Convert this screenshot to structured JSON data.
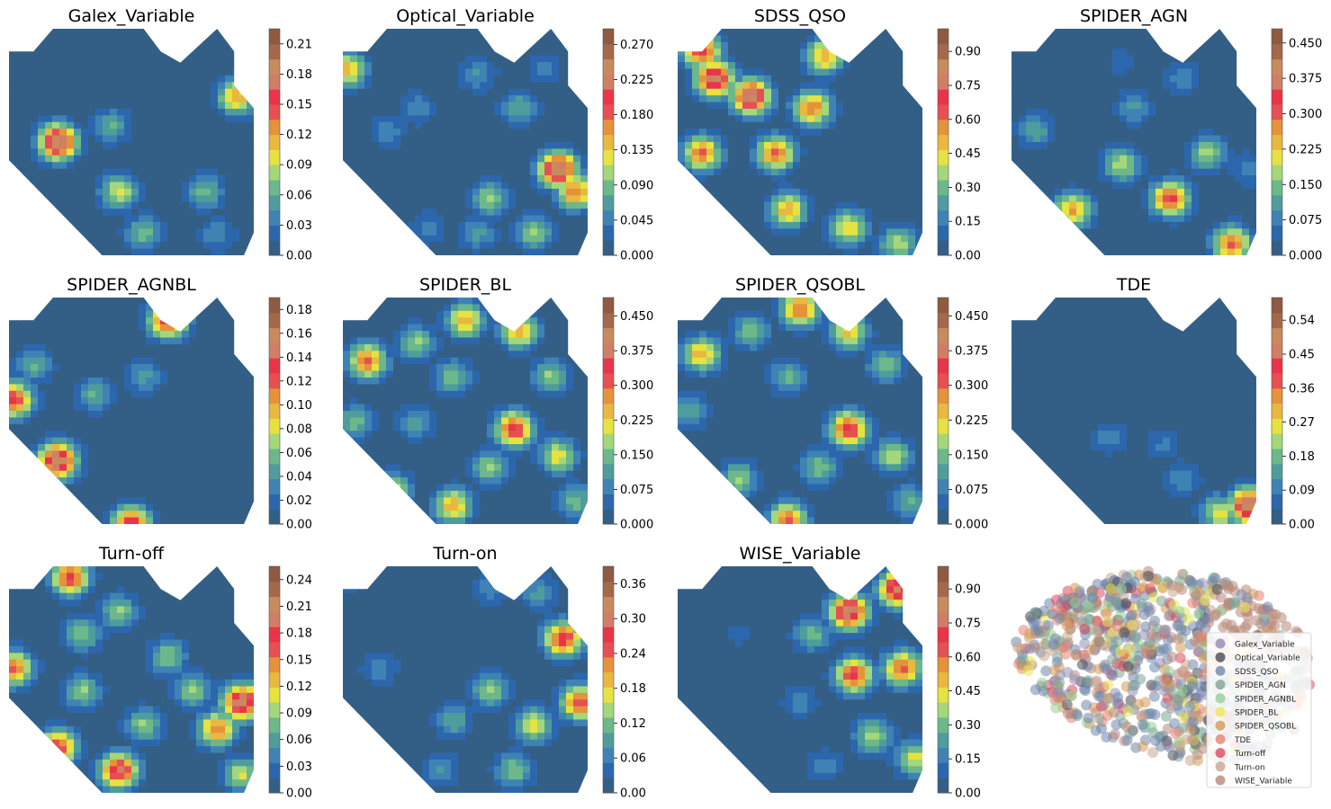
{
  "chart_data": {
    "type": "heatmap",
    "description_panels": "filled contour maps over a self-organizing grid, one per class",
    "levels": 13,
    "panels": [
      {
        "title": "Galex_Variable",
        "colorbar_ticks": [
          "0.00",
          "0.03",
          "0.06",
          "0.09",
          "0.12",
          "0.15",
          "0.18",
          "0.21"
        ],
        "vmax": 0.225,
        "hotspots": [
          [
            0.2,
            0.5,
            0.22
          ],
          [
            0.42,
            0.43,
            0.07
          ],
          [
            0.45,
            0.72,
            0.11
          ],
          [
            0.55,
            0.9,
            0.08
          ],
          [
            0.8,
            0.72,
            0.08
          ],
          [
            0.93,
            0.3,
            0.14
          ],
          [
            0.85,
            0.91,
            0.05
          ]
        ]
      },
      {
        "title": "Optical_Variable",
        "colorbar_ticks": [
          "0.000",
          "0.045",
          "0.090",
          "0.135",
          "0.180",
          "0.225",
          "0.270"
        ],
        "vmax": 0.29,
        "hotspots": [
          [
            0.02,
            0.18,
            0.17
          ],
          [
            0.18,
            0.45,
            0.06
          ],
          [
            0.3,
            0.35,
            0.06
          ],
          [
            0.55,
            0.2,
            0.07
          ],
          [
            0.72,
            0.35,
            0.09
          ],
          [
            0.82,
            0.18,
            0.05
          ],
          [
            0.88,
            0.62,
            0.29
          ],
          [
            0.95,
            0.72,
            0.2
          ],
          [
            0.6,
            0.75,
            0.12
          ],
          [
            0.55,
            0.9,
            0.08
          ],
          [
            0.78,
            0.9,
            0.12
          ],
          [
            0.35,
            0.88,
            0.06
          ]
        ]
      },
      {
        "title": "SDSS_QSO",
        "colorbar_ticks": [
          "0.00",
          "0.15",
          "0.30",
          "0.45",
          "0.60",
          "0.75",
          "0.90"
        ],
        "vmax": 1.0,
        "hotspots": [
          [
            0.15,
            0.22,
            0.95
          ],
          [
            0.3,
            0.3,
            0.98
          ],
          [
            0.1,
            0.55,
            0.7
          ],
          [
            0.4,
            0.55,
            0.72
          ],
          [
            0.55,
            0.35,
            0.7
          ],
          [
            0.45,
            0.8,
            0.62
          ],
          [
            0.7,
            0.88,
            0.55
          ],
          [
            0.9,
            0.95,
            0.45
          ],
          [
            0.1,
            0.1,
            0.8
          ],
          [
            0.6,
            0.12,
            0.62
          ]
        ]
      },
      {
        "title": "SPIDER_AGN",
        "colorbar_ticks": [
          "0.000",
          "0.075",
          "0.150",
          "0.225",
          "0.300",
          "0.375",
          "0.450"
        ],
        "vmax": 0.48,
        "hotspots": [
          [
            0.25,
            0.8,
            0.3
          ],
          [
            0.65,
            0.75,
            0.38
          ],
          [
            0.9,
            0.95,
            0.35
          ],
          [
            0.45,
            0.6,
            0.22
          ],
          [
            0.8,
            0.55,
            0.2
          ],
          [
            0.5,
            0.35,
            0.12
          ],
          [
            0.7,
            0.22,
            0.1
          ],
          [
            0.45,
            0.15,
            0.06
          ],
          [
            0.1,
            0.45,
            0.14
          ],
          [
            0.97,
            0.62,
            0.1
          ]
        ]
      },
      {
        "title": "SPIDER_AGNBL",
        "colorbar_ticks": [
          "0.00",
          "0.02",
          "0.04",
          "0.06",
          "0.08",
          "0.10",
          "0.12",
          "0.14",
          "0.16",
          "0.18"
        ],
        "vmax": 0.19,
        "hotspots": [
          [
            0.02,
            0.45,
            0.15
          ],
          [
            0.2,
            0.72,
            0.19
          ],
          [
            0.35,
            0.43,
            0.06
          ],
          [
            0.55,
            0.35,
            0.05
          ],
          [
            0.65,
            0.1,
            0.16
          ],
          [
            0.5,
            1.0,
            0.16
          ],
          [
            0.1,
            0.3,
            0.06
          ]
        ]
      },
      {
        "title": "SPIDER_BL",
        "colorbar_ticks": [
          "0.000",
          "0.075",
          "0.150",
          "0.225",
          "0.300",
          "0.375",
          "0.450"
        ],
        "vmax": 0.49,
        "hotspots": [
          [
            0.1,
            0.28,
            0.35
          ],
          [
            0.3,
            0.2,
            0.2
          ],
          [
            0.5,
            0.1,
            0.3
          ],
          [
            0.72,
            0.15,
            0.3
          ],
          [
            0.85,
            0.35,
            0.2
          ],
          [
            0.45,
            0.35,
            0.18
          ],
          [
            0.7,
            0.58,
            0.4
          ],
          [
            0.6,
            0.75,
            0.2
          ],
          [
            0.88,
            0.7,
            0.25
          ],
          [
            0.95,
            0.9,
            0.18
          ],
          [
            0.2,
            0.85,
            0.25
          ],
          [
            0.45,
            0.92,
            0.3
          ],
          [
            0.05,
            0.55,
            0.18
          ],
          [
            0.3,
            0.55,
            0.14
          ]
        ]
      },
      {
        "title": "SPIDER_QSOBL",
        "colorbar_ticks": [
          "0.000",
          "0.075",
          "0.150",
          "0.225",
          "0.300",
          "0.375",
          "0.450"
        ],
        "vmax": 0.49,
        "hotspots": [
          [
            0.1,
            0.25,
            0.3
          ],
          [
            0.3,
            0.15,
            0.18
          ],
          [
            0.5,
            0.05,
            0.35
          ],
          [
            0.7,
            0.15,
            0.28
          ],
          [
            0.85,
            0.3,
            0.18
          ],
          [
            0.45,
            0.35,
            0.16
          ],
          [
            0.7,
            0.58,
            0.4
          ],
          [
            0.58,
            0.75,
            0.18
          ],
          [
            0.88,
            0.7,
            0.22
          ],
          [
            0.95,
            0.9,
            0.16
          ],
          [
            0.25,
            0.8,
            0.2
          ],
          [
            0.45,
            0.98,
            0.35
          ],
          [
            0.05,
            0.5,
            0.15
          ]
        ]
      },
      {
        "title": "TDE",
        "colorbar_ticks": [
          "0.00",
          "0.09",
          "0.18",
          "0.27",
          "0.36",
          "0.45",
          "0.54"
        ],
        "vmax": 0.6,
        "hotspots": [
          [
            0.4,
            0.62,
            0.12
          ],
          [
            0.62,
            0.65,
            0.1
          ],
          [
            0.7,
            0.8,
            0.14
          ],
          [
            0.97,
            0.92,
            0.6
          ],
          [
            0.85,
            0.95,
            0.3
          ]
        ]
      },
      {
        "title": "Turn-off",
        "colorbar_ticks": [
          "0.00",
          "0.03",
          "0.06",
          "0.09",
          "0.12",
          "0.15",
          "0.18",
          "0.21",
          "0.24"
        ],
        "vmax": 0.255,
        "hotspots": [
          [
            0.95,
            0.6,
            0.25
          ],
          [
            0.85,
            0.72,
            0.18
          ],
          [
            0.45,
            0.9,
            0.22
          ],
          [
            0.2,
            0.8,
            0.2
          ],
          [
            0.02,
            0.45,
            0.18
          ],
          [
            0.3,
            0.3,
            0.1
          ],
          [
            0.45,
            0.2,
            0.1
          ],
          [
            0.65,
            0.4,
            0.1
          ],
          [
            0.75,
            0.55,
            0.1
          ],
          [
            0.3,
            0.55,
            0.1
          ],
          [
            0.55,
            0.7,
            0.1
          ],
          [
            0.25,
            0.05,
            0.2
          ],
          [
            0.95,
            0.92,
            0.12
          ]
        ]
      },
      {
        "title": "Turn-on",
        "colorbar_ticks": [
          "0.00",
          "0.06",
          "0.12",
          "0.18",
          "0.24",
          "0.30",
          "0.36"
        ],
        "vmax": 0.39,
        "hotspots": [
          [
            0.9,
            0.32,
            0.32
          ],
          [
            0.97,
            0.6,
            0.3
          ],
          [
            0.78,
            0.7,
            0.2
          ],
          [
            0.6,
            0.55,
            0.16
          ],
          [
            0.45,
            0.68,
            0.12
          ],
          [
            0.7,
            0.9,
            0.15
          ],
          [
            0.4,
            0.9,
            0.1
          ],
          [
            0.15,
            0.45,
            0.08
          ],
          [
            0.6,
            0.1,
            0.08
          ],
          [
            0.8,
            0.12,
            0.1
          ],
          [
            0.05,
            0.85,
            0.08
          ],
          [
            0.03,
            0.02,
            0.1
          ]
        ]
      },
      {
        "title": "WISE_Variable",
        "colorbar_ticks": [
          "0.00",
          "0.15",
          "0.30",
          "0.45",
          "0.60",
          "0.75",
          "0.90"
        ],
        "vmax": 1.0,
        "hotspots": [
          [
            0.7,
            0.2,
            0.95
          ],
          [
            0.9,
            0.1,
            0.95
          ],
          [
            0.72,
            0.48,
            0.8
          ],
          [
            0.92,
            0.45,
            0.75
          ],
          [
            0.8,
            0.75,
            0.45
          ],
          [
            0.97,
            0.85,
            0.5
          ],
          [
            0.55,
            0.3,
            0.35
          ],
          [
            0.5,
            0.6,
            0.2
          ],
          [
            0.6,
            0.88,
            0.2
          ],
          [
            0.25,
            0.3,
            0.1
          ],
          [
            0.1,
            0.95,
            0.2
          ]
        ]
      }
    ],
    "scatter_legend": {
      "entries": [
        "Galex_Variable",
        "Optical_Variable",
        "SDSS_QSO",
        "SPIDER_AGN",
        "SPIDER_AGNBL",
        "SPIDER_BL",
        "SPIDER_QSOBL",
        "TDE",
        "Turn-off",
        "Turn-on",
        "WISE_Variable"
      ],
      "colors": [
        "#8f8fb8",
        "#4a4a56",
        "#6f86ad",
        "#7ea596",
        "#95cf95",
        "#e8e75a",
        "#d39a58",
        "#e98274",
        "#de4a5e",
        "#caa590",
        "#b9887a"
      ],
      "placement": "center-right"
    }
  },
  "colormap": [
    "#335f86",
    "#2c67ad",
    "#3f83b5",
    "#4e9d9c",
    "#6cb88b",
    "#a4d77a",
    "#e6e241",
    "#e8b83f",
    "#e4933b",
    "#e65052",
    "#e9344a",
    "#d07f66",
    "#c98a5e",
    "#a3694a",
    "#8e5a41"
  ]
}
